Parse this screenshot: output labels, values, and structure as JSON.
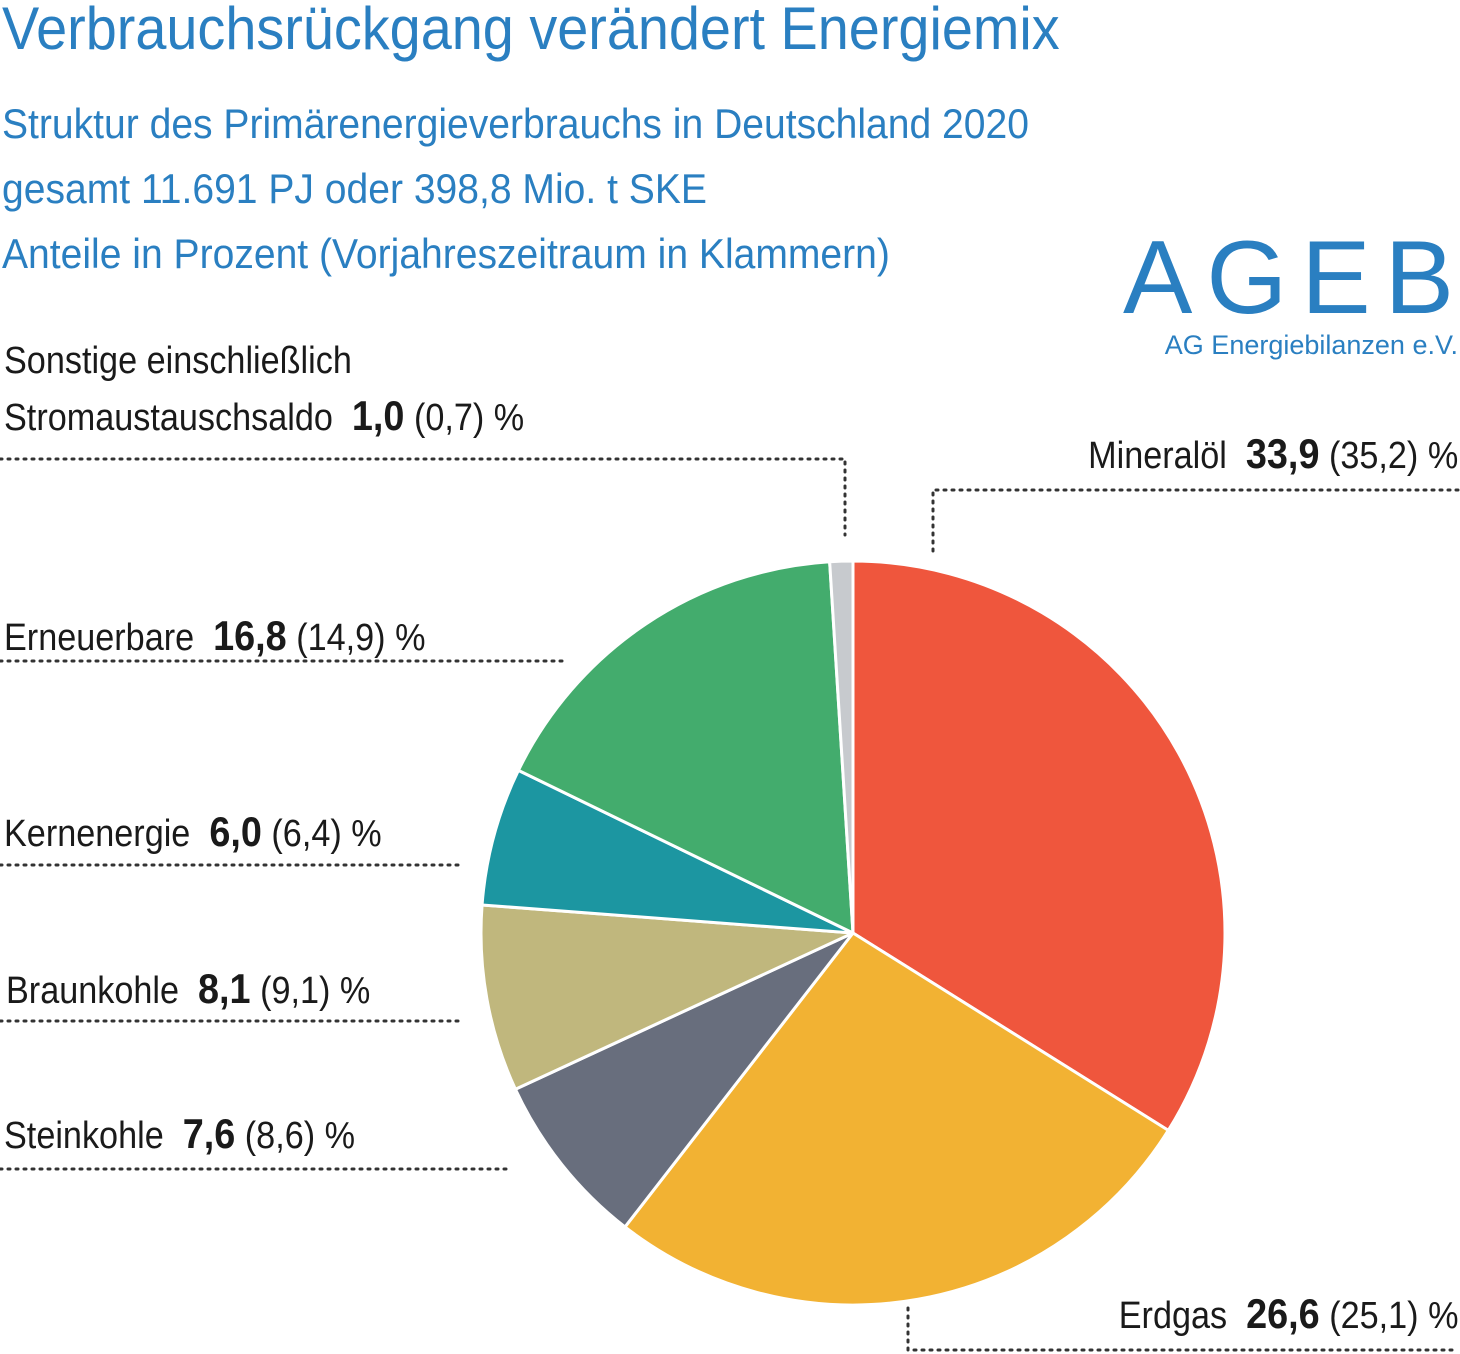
{
  "title": "Verbrauchsrückgang verändert Energiemix",
  "subtitle_lines": [
    "Struktur des Primärenergieverbrauchs in Deutschland 2020",
    "gesamt 11.691 PJ oder 398,8 Mio. t SKE",
    "Anteile in Prozent (Vorjahreszeitraum in Klammern)"
  ],
  "logo": {
    "main": "AGEB",
    "sub": "AG Energiebilanzen e.V."
  },
  "colors": {
    "accent": "#2a7fc1"
  },
  "chart_data": {
    "type": "pie",
    "start_angle": "12 o'clock, clockwise",
    "slices": [
      {
        "name": "Mineralöl",
        "value": 33.9,
        "prev": 35.2,
        "label_value": "33,9",
        "label_prev": "(35,2)",
        "unit": "%",
        "color": "#ef563d"
      },
      {
        "name": "Erdgas",
        "value": 26.6,
        "prev": 25.1,
        "label_value": "26,6",
        "label_prev": "(25,1)",
        "unit": "%",
        "color": "#f2b233"
      },
      {
        "name": "Steinkohle",
        "value": 7.6,
        "prev": 8.6,
        "label_value": "7,6",
        "label_prev": "(8,6)",
        "unit": "%",
        "color": "#686e7d"
      },
      {
        "name": "Braunkohle",
        "value": 8.1,
        "prev": 9.1,
        "label_value": "8,1",
        "label_prev": "(9,1)",
        "unit": "%",
        "color": "#c0b77d"
      },
      {
        "name": "Kernenergie",
        "value": 6.0,
        "prev": 6.4,
        "label_value": "6,0",
        "label_prev": "(6,4)",
        "unit": "%",
        "color": "#1c96a1"
      },
      {
        "name": "Erneuerbare",
        "value": 16.8,
        "prev": 14.9,
        "label_value": "16,8",
        "label_prev": "(14,9)",
        "unit": "%",
        "color": "#43ac6d"
      },
      {
        "name": "Sonstige einschließlich Stromaustauschsaldo",
        "name_line1": "Sonstige einschließlich",
        "name_line2": "Stromaustauschsaldo",
        "value": 1.0,
        "prev": 0.7,
        "label_value": "1,0",
        "label_prev": "(0,7)",
        "unit": "%",
        "color": "#c7cace"
      }
    ]
  }
}
